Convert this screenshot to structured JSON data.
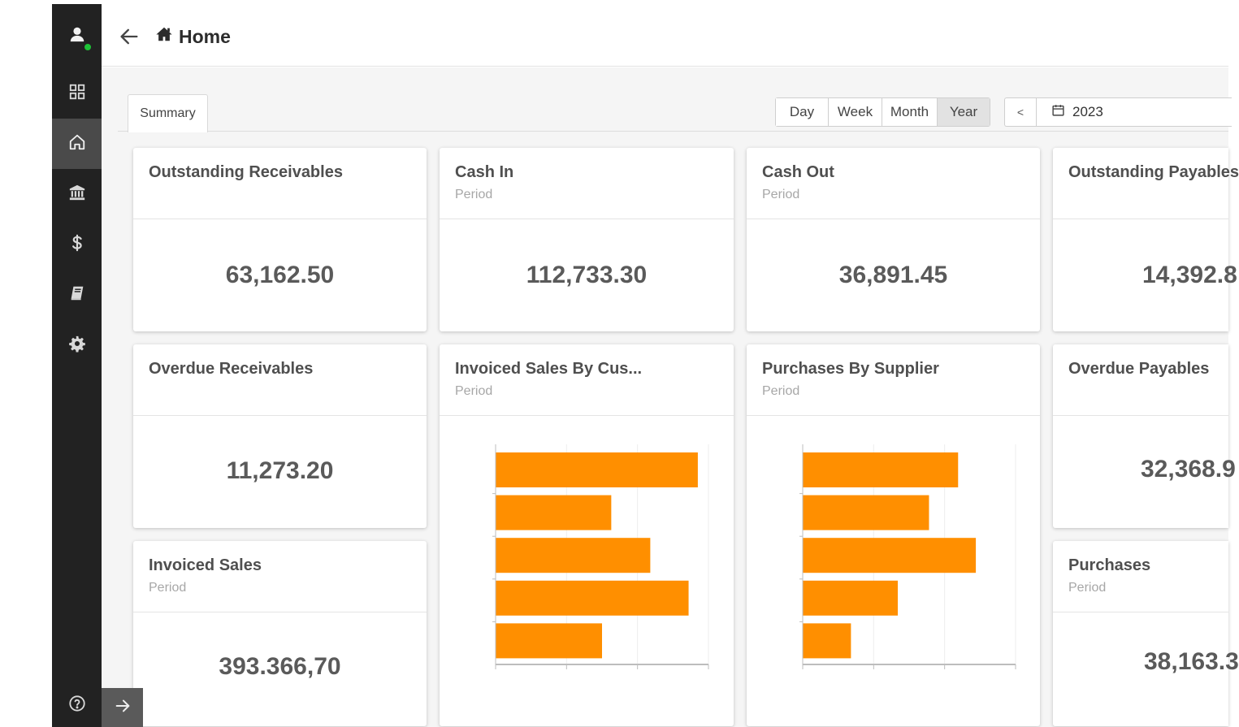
{
  "header": {
    "title": "Home"
  },
  "tabs": [
    {
      "label": "Summary"
    }
  ],
  "period": {
    "options": [
      "Day",
      "Week",
      "Month",
      "Year"
    ],
    "selected": "Year",
    "prev_label": "<",
    "date_value": "2023"
  },
  "cards": {
    "outstanding_receivables": {
      "title": "Outstanding Receivables",
      "value": "63,162.50"
    },
    "cash_in": {
      "title": "Cash In",
      "subtitle": "Period",
      "value": "112,733.30"
    },
    "cash_out": {
      "title": "Cash Out",
      "subtitle": "Period",
      "value": "36,891.45"
    },
    "outstanding_payables": {
      "title": "Outstanding Payables",
      "value": "14,392.8"
    },
    "overdue_receivables": {
      "title": "Overdue Receivables",
      "value": "11,273.20"
    },
    "invoiced_sales_by_customer": {
      "title": "Invoiced Sales By Cus...",
      "subtitle": "Period"
    },
    "purchases_by_supplier": {
      "title": "Purchases By Supplier",
      "subtitle": "Period"
    },
    "overdue_payables": {
      "title": "Overdue Payables",
      "value": "32,368.9"
    },
    "invoiced_sales": {
      "title": "Invoiced Sales",
      "subtitle": "Period",
      "value": "393.366,70"
    },
    "purchases": {
      "title": "Purchases",
      "subtitle": "Period",
      "value": "38,163.3"
    }
  },
  "chart_data": [
    {
      "type": "bar",
      "orientation": "horizontal",
      "title": "Invoiced Sales By Cus...",
      "values": [
        28.5,
        16.3,
        21.8,
        27.2,
        15.0
      ],
      "xlim": [
        0,
        30
      ],
      "grid": true,
      "color": "#ff8f00"
    },
    {
      "type": "bar",
      "orientation": "horizontal",
      "title": "Purchases By Supplier",
      "values": [
        21.9,
        17.8,
        24.4,
        13.4,
        6.8
      ],
      "xlim": [
        0,
        30
      ],
      "grid": true,
      "color": "#ff8f00"
    }
  ],
  "colors": {
    "sidebar": "#222222",
    "accent_bar": "#ff8f00",
    "presence": "#1ec337"
  },
  "icons": {
    "sidebar": [
      "user-avatar-icon",
      "dashboard-grid-icon",
      "home-icon",
      "bank-icon",
      "dollar-icon",
      "book-icon",
      "gear-icon",
      "help-icon"
    ],
    "header": [
      "back-arrow-icon",
      "home-icon"
    ],
    "date": "calendar-icon",
    "expand": "arrow-right-icon"
  }
}
